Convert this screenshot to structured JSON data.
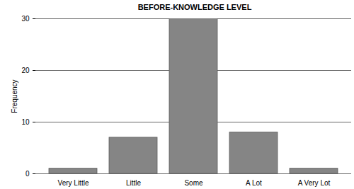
{
  "chart_data": {
    "type": "bar",
    "title": "BEFORE-KNOWLEDGE LEVEL",
    "y_label": "Frequency",
    "categories": [
      "Very Little",
      "Little",
      "Some",
      "A Lot",
      "A Very Lot"
    ],
    "values": [
      1,
      7,
      30,
      8,
      1
    ],
    "color": "#858585",
    "ylim": [
      0,
      30
    ],
    "yticks": [
      0,
      10,
      20,
      30
    ],
    "grid": true
  }
}
